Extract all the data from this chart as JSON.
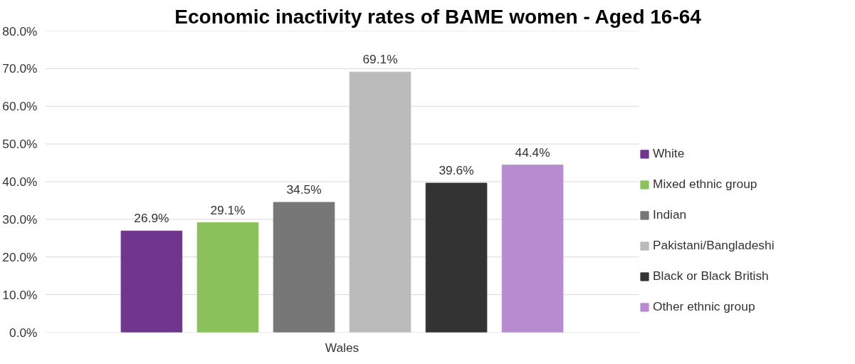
{
  "chart_data": {
    "type": "bar",
    "title": "Economic inactivity rates of BAME women -  Aged 16-64",
    "categories": [
      "Wales"
    ],
    "series": [
      {
        "name": "White",
        "color": "#70368e",
        "values": [
          26.9
        ],
        "value_labels": [
          "26.9%"
        ]
      },
      {
        "name": "Mixed ethnic group",
        "color": "#8bc15a",
        "values": [
          29.1
        ],
        "value_labels": [
          "29.1%"
        ]
      },
      {
        "name": "Indian",
        "color": "#777777",
        "values": [
          34.5
        ],
        "value_labels": [
          "34.5%"
        ]
      },
      {
        "name": "Pakistani/Bangladeshi",
        "color": "#bbbbbb",
        "values": [
          69.1
        ],
        "value_labels": [
          "69.1%"
        ]
      },
      {
        "name": "Black or Black British",
        "color": "#333333",
        "values": [
          39.6
        ],
        "value_labels": [
          "39.6%"
        ]
      },
      {
        "name": "Other ethnic group",
        "color": "#b78bd0",
        "values": [
          44.4
        ],
        "value_labels": [
          "44.4%"
        ]
      }
    ],
    "ylim": [
      0,
      80
    ],
    "yticks": [
      {
        "value": 0,
        "label": "0.0%"
      },
      {
        "value": 10,
        "label": "10.0%"
      },
      {
        "value": 20,
        "label": "20.0%"
      },
      {
        "value": 30,
        "label": "30.0%"
      },
      {
        "value": 40,
        "label": "40.0%"
      },
      {
        "value": 50,
        "label": "50.0%"
      },
      {
        "value": 60,
        "label": "60.0%"
      },
      {
        "value": 70,
        "label": "70.0%"
      },
      {
        "value": 80,
        "label": "80.0%"
      }
    ],
    "grid": "y",
    "legend": "right"
  }
}
